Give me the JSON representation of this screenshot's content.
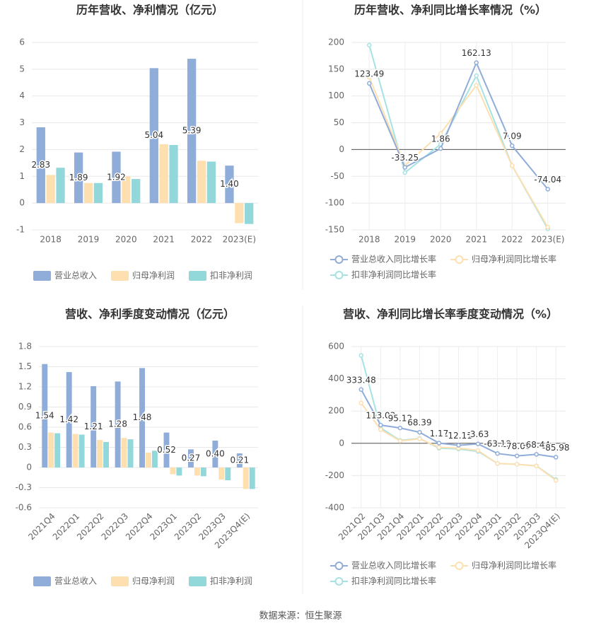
{
  "chart_data": [
    {
      "type": "bar",
      "title": "历年营收、净利情况（亿元）",
      "categories": [
        "2018",
        "2019",
        "2020",
        "2021",
        "2022",
        "2023(E)"
      ],
      "series": [
        {
          "name": "营业总收入",
          "color": "#90acd9",
          "values": [
            2.83,
            1.89,
            1.92,
            5.04,
            5.39,
            1.4
          ],
          "value_labels": [
            "2.83",
            "1.89",
            "1.92",
            "5.04",
            "5.39",
            "1.40"
          ]
        },
        {
          "name": "归母净利润",
          "color": "#fddfb0",
          "values": [
            1.05,
            0.75,
            1.0,
            2.2,
            1.58,
            -0.75
          ]
        },
        {
          "name": "扣非净利润",
          "color": "#92d8da",
          "values": [
            1.32,
            0.75,
            0.9,
            2.17,
            1.55,
            -0.78
          ]
        }
      ],
      "ylim": [
        -1,
        6
      ],
      "yticks": [
        -1,
        0,
        1,
        2,
        3,
        4,
        5,
        6
      ],
      "grid": true
    },
    {
      "type": "line",
      "title": "历年营收、净利同比增长率情况（%）",
      "categories": [
        "2018",
        "2019",
        "2020",
        "2021",
        "2022",
        "2023(E)"
      ],
      "series": [
        {
          "name": "营业总收入同比增长率",
          "color": "#90acd9",
          "values": [
            123.49,
            -33.25,
            1.86,
            162.13,
            7.09,
            -74.04
          ],
          "value_labels": [
            "123.49",
            "-33.25",
            "1.86",
            "162.13",
            "7.09",
            "-74.04"
          ]
        },
        {
          "name": "归母净利润同比增长率",
          "color": "#fddfb0",
          "values": [
            135,
            -30,
            30,
            120,
            -30,
            -145
          ]
        },
        {
          "name": "扣非净利润同比增长率",
          "color": "#a6e2e2",
          "values": [
            195,
            -43,
            10,
            138,
            -30,
            -148
          ]
        }
      ],
      "ylim": [
        -150,
        200
      ],
      "yticks": [
        -150,
        -100,
        -50,
        0,
        50,
        100,
        150,
        200
      ],
      "grid": true
    },
    {
      "type": "bar",
      "title": "营收、净利季度变动情况（亿元）",
      "categories": [
        "2021Q4",
        "2022Q1",
        "2022Q2",
        "2022Q3",
        "2022Q4",
        "2023Q1",
        "2023Q2",
        "2023Q3",
        "2023Q4(E)"
      ],
      "series": [
        {
          "name": "营业总收入",
          "color": "#90acd9",
          "values": [
            1.54,
            1.42,
            1.21,
            1.28,
            1.48,
            0.52,
            0.27,
            0.4,
            0.21
          ],
          "value_labels": [
            "1.54",
            "1.42",
            "1.21",
            "1.28",
            "1.48",
            "0.52",
            "0.27",
            "0.40",
            "0.21"
          ]
        },
        {
          "name": "归母净利润",
          "color": "#fddfb0",
          "values": [
            0.52,
            0.5,
            0.41,
            0.44,
            0.22,
            -0.1,
            -0.12,
            -0.18,
            -0.32
          ]
        },
        {
          "name": "扣非净利润",
          "color": "#92d8da",
          "values": [
            0.51,
            0.49,
            0.38,
            0.42,
            0.25,
            -0.12,
            -0.13,
            -0.19,
            -0.32
          ]
        }
      ],
      "ylim": [
        -0.6,
        1.8
      ],
      "yticks": [
        -0.6,
        -0.3,
        0,
        0.3,
        0.6,
        0.9,
        1.2,
        1.5,
        1.8
      ],
      "grid": true
    },
    {
      "type": "line",
      "title": "营收、净利同比增长率季度变动情况（%）",
      "categories": [
        "2021Q2",
        "2021Q3",
        "2021Q4",
        "2022Q1",
        "2022Q2",
        "2022Q3",
        "2022Q4",
        "2023Q1",
        "2023Q2",
        "2023Q3",
        "2023Q4(E)"
      ],
      "series": [
        {
          "name": "营业总收入同比增长率",
          "color": "#90acd9",
          "values": [
            333.48,
            113.03,
            95.12,
            68.39,
            1.17,
            -12.11,
            -3.63,
            -63.19,
            -78.06,
            -68.44,
            -85.98
          ],
          "value_labels": [
            "333.48",
            "113.03",
            "95.12",
            "68.39",
            "1.17",
            "-12.11",
            "-3.63",
            "-63.19",
            "-78.06",
            "-68.44",
            "-85.98"
          ]
        },
        {
          "name": "归母净利润同比增长率",
          "color": "#fddfb0",
          "values": [
            250,
            85,
            15,
            28,
            -25,
            -30,
            -45,
            -125,
            -130,
            -140,
            -230
          ]
        },
        {
          "name": "扣非净利润同比增长率",
          "color": "#a6e2e2",
          "values": [
            545,
            95,
            18,
            30,
            -30,
            -35,
            -50,
            -125,
            -130,
            -140,
            -225
          ]
        }
      ],
      "ylim": [
        -400,
        600
      ],
      "yticks": [
        -400,
        -200,
        0,
        200,
        400,
        600
      ],
      "grid": true
    }
  ],
  "source": "数据来源：恒生聚源"
}
